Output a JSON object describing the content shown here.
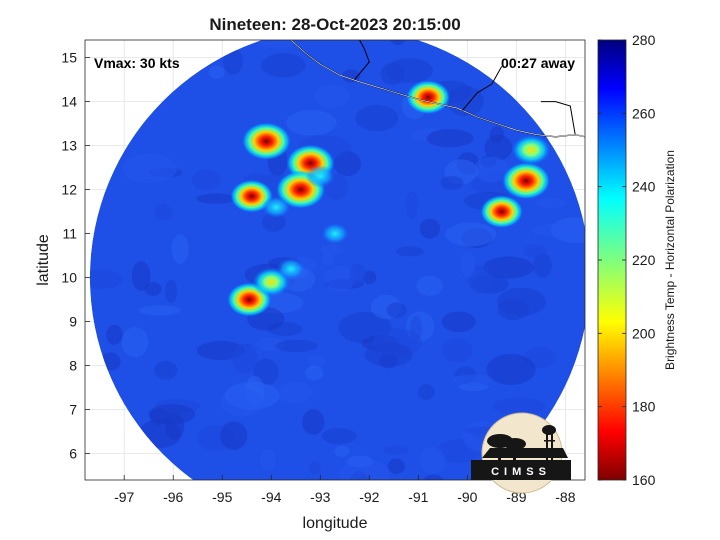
{
  "title": "Nineteen: 28-Oct-2023 20:15:00",
  "annotations": {
    "vmax": "Vmax: 30 kts",
    "time_away": "00:27 away"
  },
  "axes": {
    "xlabel": "longitude",
    "ylabel": "latitude",
    "xlim": [
      -97.8,
      -87.6
    ],
    "ylim": [
      5.4,
      15.4
    ],
    "xticks": [
      -97,
      -96,
      -95,
      -94,
      -93,
      -92,
      -91,
      -90,
      -89,
      -88
    ],
    "yticks": [
      6,
      7,
      8,
      9,
      10,
      11,
      12,
      13,
      14,
      15
    ],
    "xtick_labels": [
      "-97",
      "-96",
      "-95",
      "-94",
      "-93",
      "-92",
      "-91",
      "-90",
      "-89",
      "-88"
    ],
    "ytick_labels": [
      "6",
      "7",
      "8",
      "9",
      "10",
      "11",
      "12",
      "13",
      "14",
      "15"
    ],
    "grid": true
  },
  "colorbar": {
    "label": "Brightness Temp - Horizontal Polarization",
    "range": [
      160,
      280
    ],
    "ticks": [
      160,
      180,
      200,
      220,
      240,
      260,
      280
    ],
    "tick_labels": [
      "160",
      "180",
      "200",
      "220",
      "240",
      "260",
      "280"
    ],
    "colormap": "jet"
  },
  "swath": {
    "center_lon": -92.6,
    "center_lat": 10.0,
    "radius_deg": 5.1
  },
  "logo": {
    "text": "CIMSS"
  },
  "chart_data": {
    "type": "heatmap",
    "title": "Nineteen: 28-Oct-2023 20:15:00",
    "xlabel": "longitude",
    "ylabel": "latitude",
    "xlim": [
      -97.8,
      -87.6
    ],
    "ylim": [
      5.4,
      15.4
    ],
    "value_range": [
      160,
      280
    ],
    "background_value": 262,
    "features": [
      {
        "lon": -94.1,
        "lat": 13.1,
        "min_value": 170
      },
      {
        "lon": -93.2,
        "lat": 12.6,
        "min_value": 172
      },
      {
        "lon": -93.4,
        "lat": 12.0,
        "min_value": 168
      },
      {
        "lon": -94.4,
        "lat": 11.85,
        "min_value": 190
      },
      {
        "lon": -94.45,
        "lat": 9.5,
        "min_value": 185
      },
      {
        "lon": -94.0,
        "lat": 9.9,
        "min_value": 205
      },
      {
        "lon": -88.8,
        "lat": 12.2,
        "min_value": 172
      },
      {
        "lon": -89.3,
        "lat": 11.5,
        "min_value": 190
      },
      {
        "lon": -90.8,
        "lat": 14.1,
        "min_value": 185
      },
      {
        "lon": -93.0,
        "lat": 12.3,
        "min_value": 235
      },
      {
        "lon": -92.7,
        "lat": 11.0,
        "min_value": 240
      },
      {
        "lon": -93.6,
        "lat": 10.2,
        "min_value": 238
      },
      {
        "lon": -93.9,
        "lat": 11.6,
        "min_value": 236
      },
      {
        "lon": -88.7,
        "lat": 12.9,
        "min_value": 200
      }
    ],
    "coastline": [
      [
        -93.6,
        15.4
      ],
      [
        -93.3,
        15.1
      ],
      [
        -93.0,
        14.85
      ],
      [
        -92.6,
        14.6
      ],
      [
        -92.2,
        14.45
      ],
      [
        -91.6,
        14.25
      ],
      [
        -91.0,
        14.05
      ],
      [
        -90.6,
        13.95
      ],
      [
        -90.2,
        13.85
      ],
      [
        -89.8,
        13.65
      ],
      [
        -89.4,
        13.5
      ],
      [
        -89.0,
        13.35
      ],
      [
        -88.6,
        13.25
      ],
      [
        -88.2,
        13.2
      ],
      [
        -87.8,
        13.25
      ],
      [
        -87.6,
        13.2
      ]
    ],
    "borders": [
      [
        [
          -92.3,
          14.5
        ],
        [
          -92.0,
          14.9
        ],
        [
          -92.1,
          15.2
        ],
        [
          -92.2,
          15.4
        ]
      ],
      [
        [
          -90.1,
          13.8
        ],
        [
          -89.8,
          14.2
        ],
        [
          -89.5,
          14.4
        ],
        [
          -89.3,
          14.8
        ]
      ],
      [
        [
          -87.8,
          13.25
        ],
        [
          -87.9,
          13.9
        ],
        [
          -88.2,
          14.0
        ],
        [
          -88.5,
          14.0
        ]
      ]
    ]
  }
}
